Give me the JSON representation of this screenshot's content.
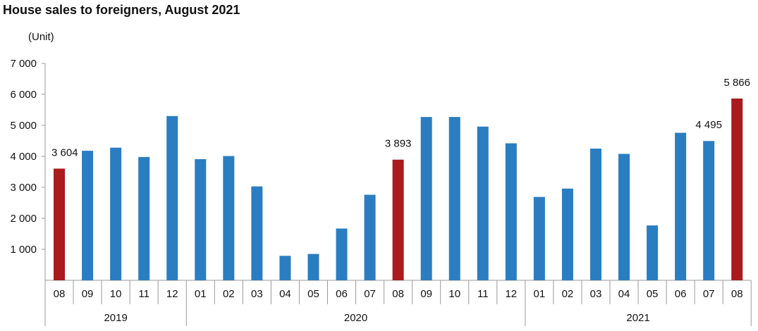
{
  "chart_data": {
    "type": "bar",
    "title": "House sales to foreigners, August 2021",
    "unit_label": "(Unit)",
    "ylim": [
      0,
      7000
    ],
    "y_ticks": [
      {
        "value": 1000,
        "label": "1 000"
      },
      {
        "value": 2000,
        "label": "2 000"
      },
      {
        "value": 3000,
        "label": "3 000"
      },
      {
        "value": 4000,
        "label": "4 000"
      },
      {
        "value": 5000,
        "label": "5 000"
      },
      {
        "value": 6000,
        "label": "6 000"
      },
      {
        "value": 7000,
        "label": "7 000"
      }
    ],
    "grid": false,
    "categories": [
      "08",
      "09",
      "10",
      "11",
      "12",
      "01",
      "02",
      "03",
      "04",
      "05",
      "06",
      "07",
      "08",
      "09",
      "10",
      "11",
      "12",
      "01",
      "02",
      "03",
      "04",
      "05",
      "06",
      "07",
      "08"
    ],
    "values": [
      3604,
      4180,
      4280,
      3980,
      5300,
      3910,
      4010,
      3030,
      790,
      850,
      1670,
      2760,
      3893,
      5270,
      5270,
      4960,
      4420,
      2690,
      2960,
      4250,
      4080,
      1770,
      4760,
      4495,
      5866
    ],
    "highlighted": [
      true,
      false,
      false,
      false,
      false,
      false,
      false,
      false,
      false,
      false,
      false,
      false,
      true,
      false,
      false,
      false,
      false,
      false,
      false,
      false,
      false,
      false,
      false,
      false,
      true
    ],
    "data_labels": [
      {
        "index": 0,
        "label": "3 604"
      },
      {
        "index": 12,
        "label": "3 893"
      },
      {
        "index": 23,
        "label": "4 495"
      },
      {
        "index": 24,
        "label": "5 866"
      }
    ],
    "year_groups": [
      {
        "label": "2019",
        "start": 0,
        "end": 4
      },
      {
        "label": "2020",
        "start": 5,
        "end": 16
      },
      {
        "label": "2021",
        "start": 17,
        "end": 24
      }
    ],
    "colors": {
      "bar": "#2b7dc1",
      "highlight": "#ab1a1d",
      "axis": "#9a9a9a",
      "text": "#111111"
    }
  }
}
